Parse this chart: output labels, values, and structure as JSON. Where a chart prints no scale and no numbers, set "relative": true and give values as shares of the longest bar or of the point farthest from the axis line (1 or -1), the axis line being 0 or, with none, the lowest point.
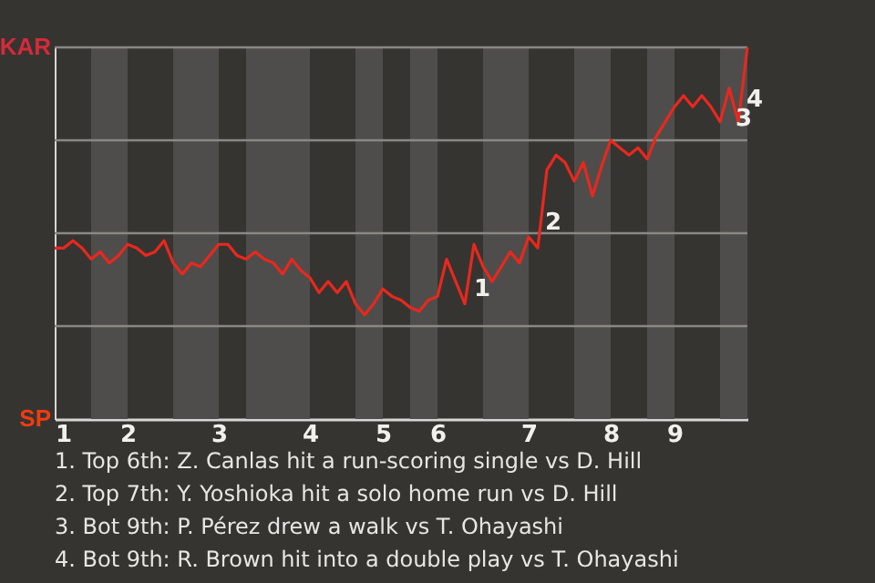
{
  "chart_data": {
    "type": "line",
    "categories": [
      "1",
      null,
      null,
      null,
      null,
      null,
      null,
      null,
      "2",
      null,
      null,
      null,
      null,
      null,
      null,
      null,
      null,
      null,
      "3",
      null,
      null,
      null,
      null,
      null,
      null,
      null,
      null,
      null,
      "4",
      null,
      null,
      null,
      null,
      null,
      null,
      null,
      "5",
      null,
      null,
      null,
      null,
      null,
      "6",
      null,
      null,
      null,
      null,
      null,
      null,
      null,
      null,
      null,
      "7",
      null,
      null,
      null,
      null,
      null,
      null,
      null,
      null,
      "8",
      null,
      null,
      null,
      null,
      null,
      null,
      "9",
      null,
      null,
      null,
      null,
      null,
      null,
      null,
      null
    ],
    "relative": true,
    "series": [
      {
        "color": "#e8281e",
        "values": [
          0.46,
          0.46,
          0.48,
          0.46,
          0.43,
          0.45,
          0.42,
          0.44,
          0.47,
          0.46,
          0.44,
          0.45,
          0.48,
          0.42,
          0.39,
          0.42,
          0.41,
          0.44,
          0.47,
          0.47,
          0.44,
          0.43,
          0.45,
          0.43,
          0.42,
          0.39,
          0.43,
          0.4,
          0.38,
          0.34,
          0.37,
          0.34,
          0.37,
          0.31,
          0.28,
          0.31,
          0.35,
          0.33,
          0.32,
          0.3,
          0.29,
          0.32,
          0.33,
          0.43,
          0.37,
          0.31,
          0.47,
          0.41,
          0.37,
          0.41,
          0.45,
          0.42,
          0.49,
          0.46,
          0.67,
          0.71,
          0.69,
          0.64,
          0.69,
          0.6,
          0.68,
          0.75,
          0.73,
          0.71,
          0.73,
          0.7,
          0.76,
          0.8,
          0.84,
          0.87,
          0.84,
          0.87,
          0.84,
          0.8,
          0.89,
          0.8,
          1
        ]
      }
    ],
    "ref_lines": [
      {
        "axis": "y",
        "value": 0.25,
        "color": "#8a8885"
      },
      {
        "axis": "y",
        "value": 0.5,
        "color": "#8a8885"
      },
      {
        "axis": "y",
        "value": 0.75,
        "color": "#8a8885"
      },
      {
        "axis": "y",
        "value": 1,
        "color": "#8a8885"
      }
    ],
    "annotations": [
      "KAR",
      "SP",
      "1",
      "2",
      "3",
      "4",
      "1. Top 6th: Z. Canlas hit a run-scoring single vs D. Hill",
      "2. Top 7th: Y. Yoshioka hit a solo home run vs D. Hill",
      "3. Bot 9th: P. Pérez drew a walk vs T. Ohayashi",
      "4. Bot 9th: R. Brown hit into a double play vs T. Ohayashi"
    ],
    "line_style": "solid",
    "marker": "none"
  }
}
